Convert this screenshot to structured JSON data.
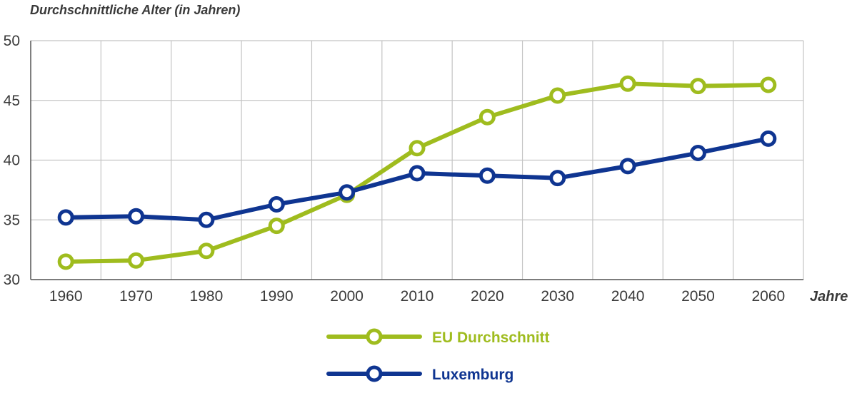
{
  "chart_data": {
    "type": "line",
    "ylabel": "Durchschnittliche Alter (in Jahren)",
    "xlabel": "Jahre",
    "x": [
      1960,
      1970,
      1980,
      1990,
      2000,
      2010,
      2020,
      2030,
      2040,
      2050,
      2060
    ],
    "ylim": [
      30,
      50
    ],
    "yticks": [
      30,
      35,
      40,
      45,
      50
    ],
    "grid": true,
    "legend_position": "bottom-center",
    "series": [
      {
        "name": "EU Durchschnitt",
        "color": "#9fbc1e",
        "values": [
          31.5,
          31.6,
          32.4,
          34.5,
          37.1,
          41.0,
          43.6,
          45.4,
          46.4,
          46.2,
          46.3
        ]
      },
      {
        "name": "Luxemburg",
        "color": "#0f3591",
        "values": [
          35.2,
          35.3,
          35.0,
          36.3,
          37.3,
          38.9,
          38.7,
          38.5,
          39.5,
          40.6,
          41.8
        ]
      }
    ]
  }
}
